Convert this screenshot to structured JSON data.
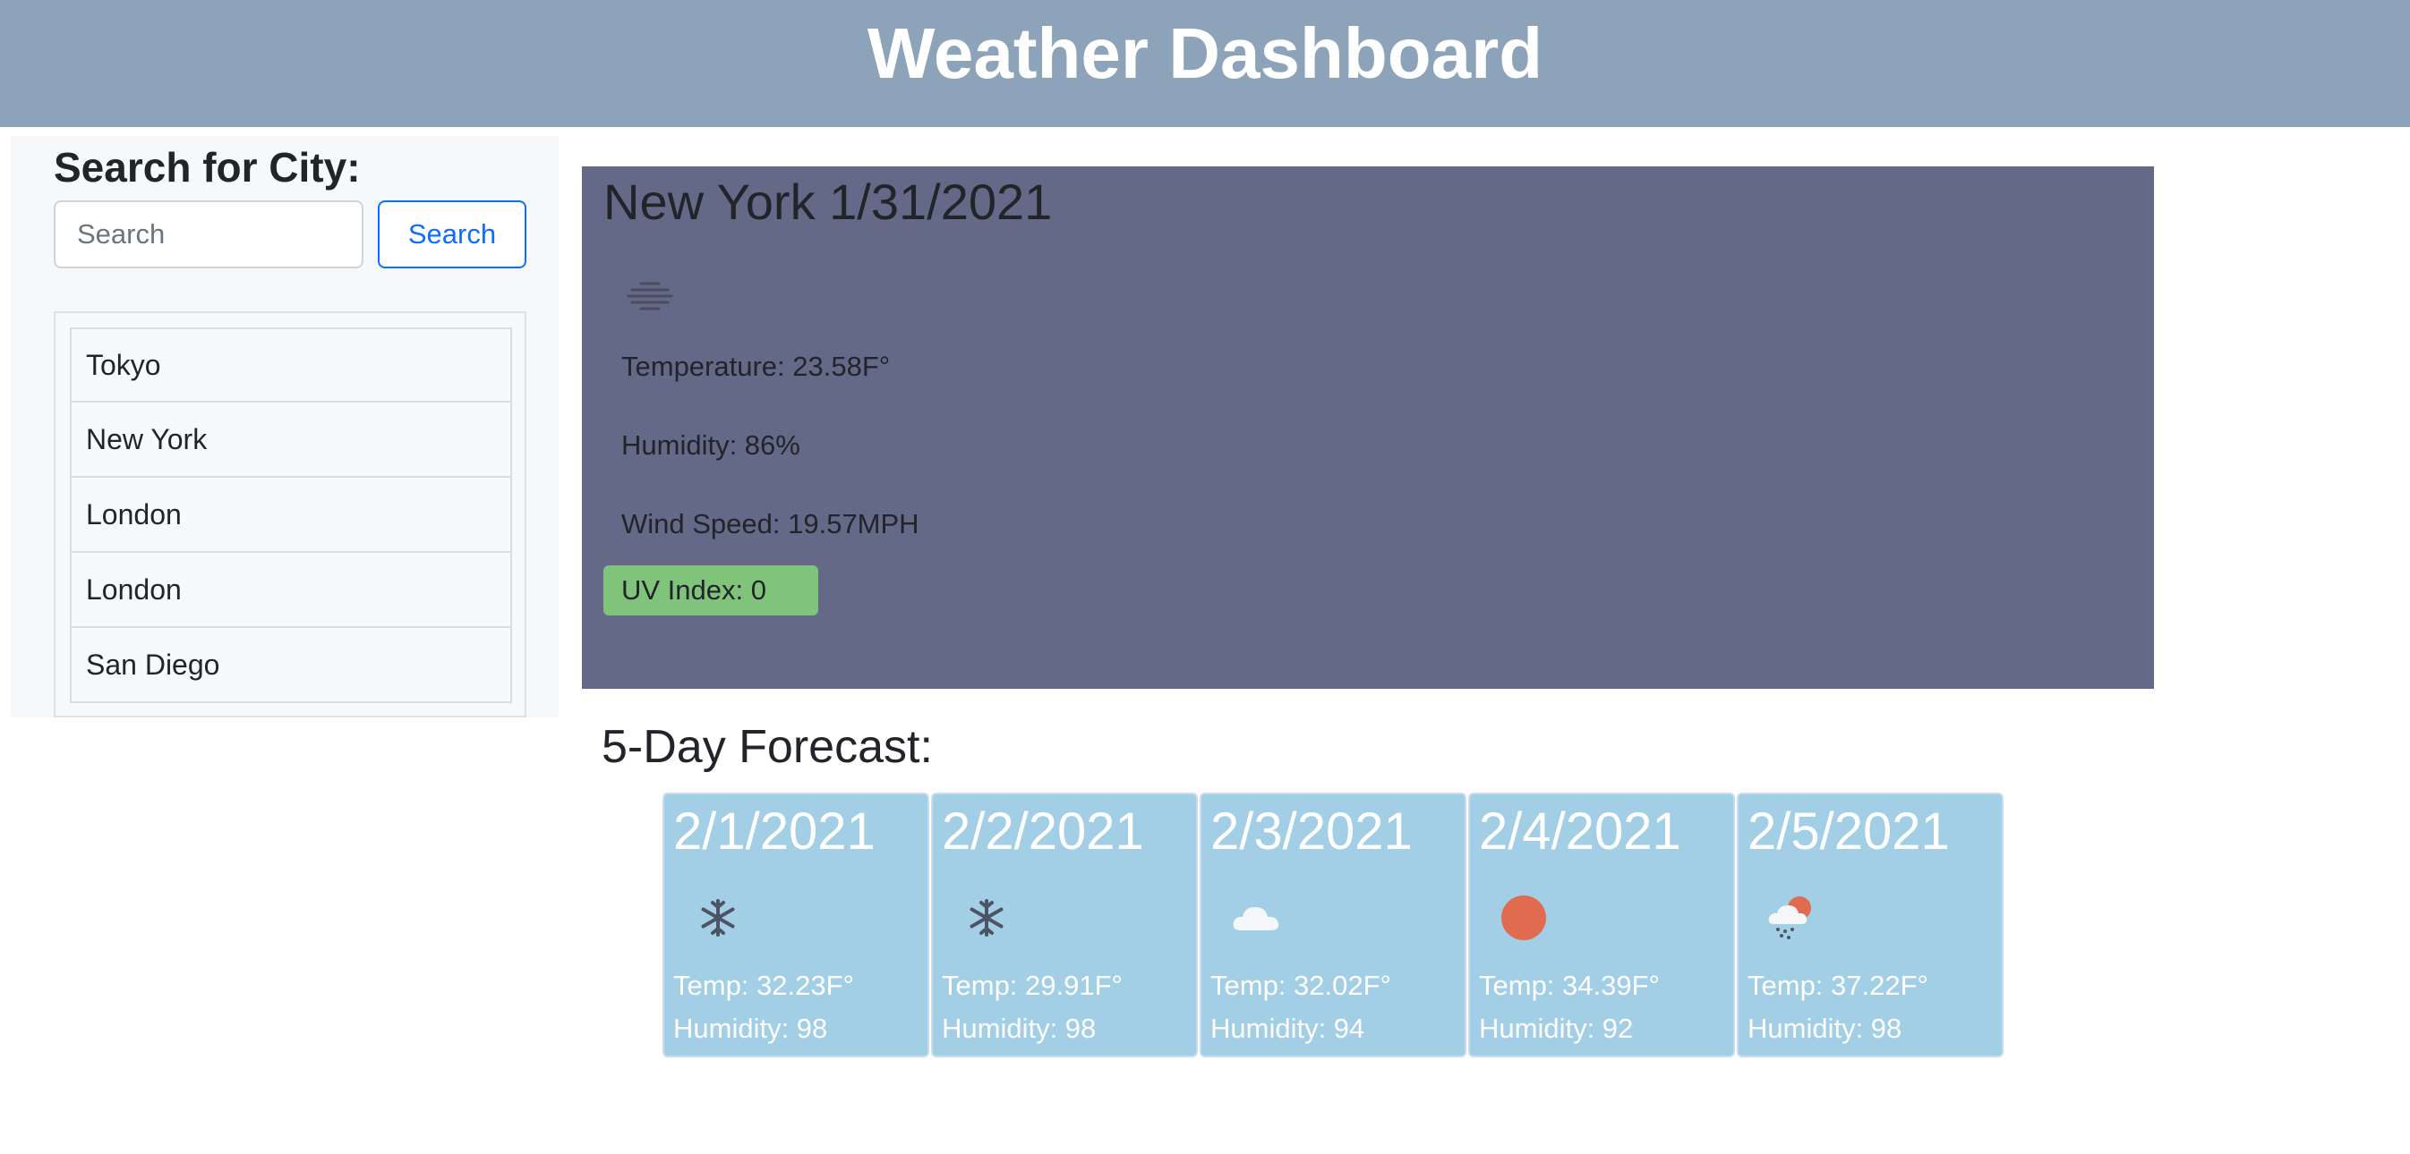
{
  "header": {
    "title": "Weather Dashboard"
  },
  "sidebar": {
    "heading": "Search for City:",
    "search_placeholder": "Search",
    "search_button": "Search",
    "history": [
      {
        "label": "Tokyo"
      },
      {
        "label": "New York"
      },
      {
        "label": "London"
      },
      {
        "label": "London"
      },
      {
        "label": "San Diego"
      }
    ]
  },
  "current": {
    "title": "New York 1/31/2021",
    "icon": "mist-icon",
    "temperature": "Temperature: 23.58F°",
    "humidity": "Humidity: 86%",
    "wind": "Wind Speed: 19.57MPH",
    "uv": "UV Index: 0",
    "uv_color": "#80c37a"
  },
  "forecast": {
    "heading": "5-Day Forecast:",
    "days": [
      {
        "date": "2/1/2021",
        "icon": "snow-icon",
        "temp": "Temp: 32.23F°",
        "humidity": "Humidity: 98"
      },
      {
        "date": "2/2/2021",
        "icon": "snow-icon",
        "temp": "Temp: 29.91F°",
        "humidity": "Humidity: 98"
      },
      {
        "date": "2/3/2021",
        "icon": "cloud-icon",
        "temp": "Temp: 32.02F°",
        "humidity": "Humidity: 94"
      },
      {
        "date": "2/4/2021",
        "icon": "sun-icon",
        "temp": "Temp: 34.39F°",
        "humidity": "Humidity: 92"
      },
      {
        "date": "2/5/2021",
        "icon": "sun-cloud-snow-icon",
        "temp": "Temp: 37.22F°",
        "humidity": "Humidity: 98"
      }
    ]
  },
  "colors": {
    "header_bg": "#8ca3b9",
    "current_bg": "#646987",
    "card_bg": "#a2cfe6",
    "button_blue": "#0d6efd"
  }
}
